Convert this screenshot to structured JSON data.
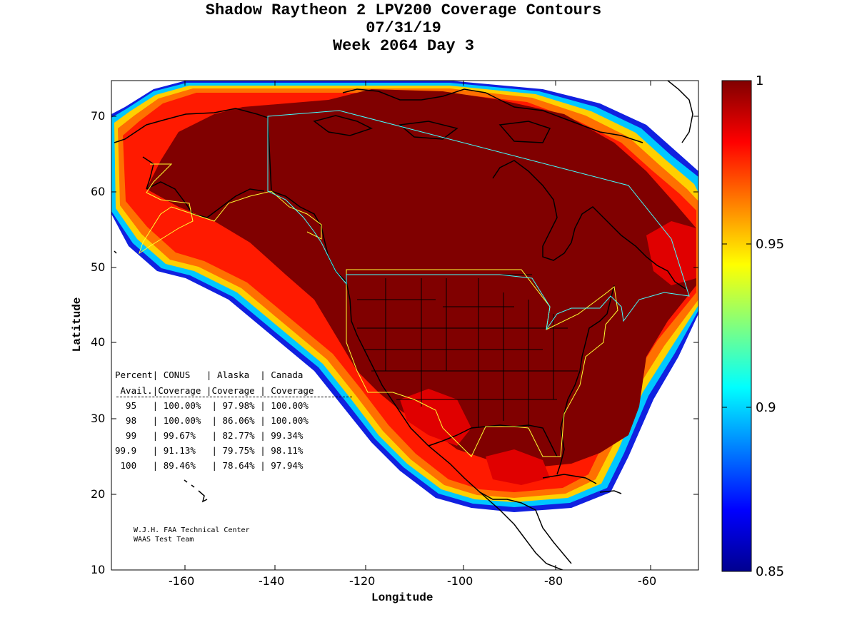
{
  "title": {
    "line1": "Shadow Raytheon 2 LPV200 Coverage Contours",
    "line2": "07/31/19",
    "line3": "Week 2064 Day 3"
  },
  "axes": {
    "xlabel": "Longitude",
    "ylabel": "Latitude",
    "xlim": [
      -175,
      -50
    ],
    "ylim": [
      10,
      75
    ],
    "xticks": [
      "-160",
      "-140",
      "-120",
      "-100",
      "-80",
      "-60"
    ],
    "yticks": [
      "10",
      "20",
      "30",
      "40",
      "50",
      "60",
      "70"
    ]
  },
  "colorbar": {
    "range": [
      0.85,
      1
    ],
    "ticks": [
      "1",
      "0.95",
      "0.9",
      "0.85"
    ],
    "colormap": "jet"
  },
  "table": {
    "header1": "Percent| CONUS   | Alaska  | Canada",
    "header2": " Avail.|Coverage |Coverage | Coverage",
    "rows": [
      "  95   | 100.00%  | 97.98% | 100.00%",
      "  98   | 100.00%  | 86.06% | 100.00%",
      "  99   | 99.67%   | 82.77% | 99.34%",
      "99.9   | 91.13%   | 79.75% | 98.11%",
      " 100   | 89.46%   | 78.64% | 97.94%"
    ]
  },
  "credit": {
    "line1": "W.J.H. FAA Technical Center",
    "line2": "WAAS Test Team"
  },
  "colors": {
    "max_coverage": "#800000",
    "high": "#ff0000",
    "mid": "#ff8000",
    "low": "#00bfff",
    "lowest": "#0000a0",
    "boundary_us_alaska": "#ffff00",
    "boundary_canada": "#00ffff"
  }
}
